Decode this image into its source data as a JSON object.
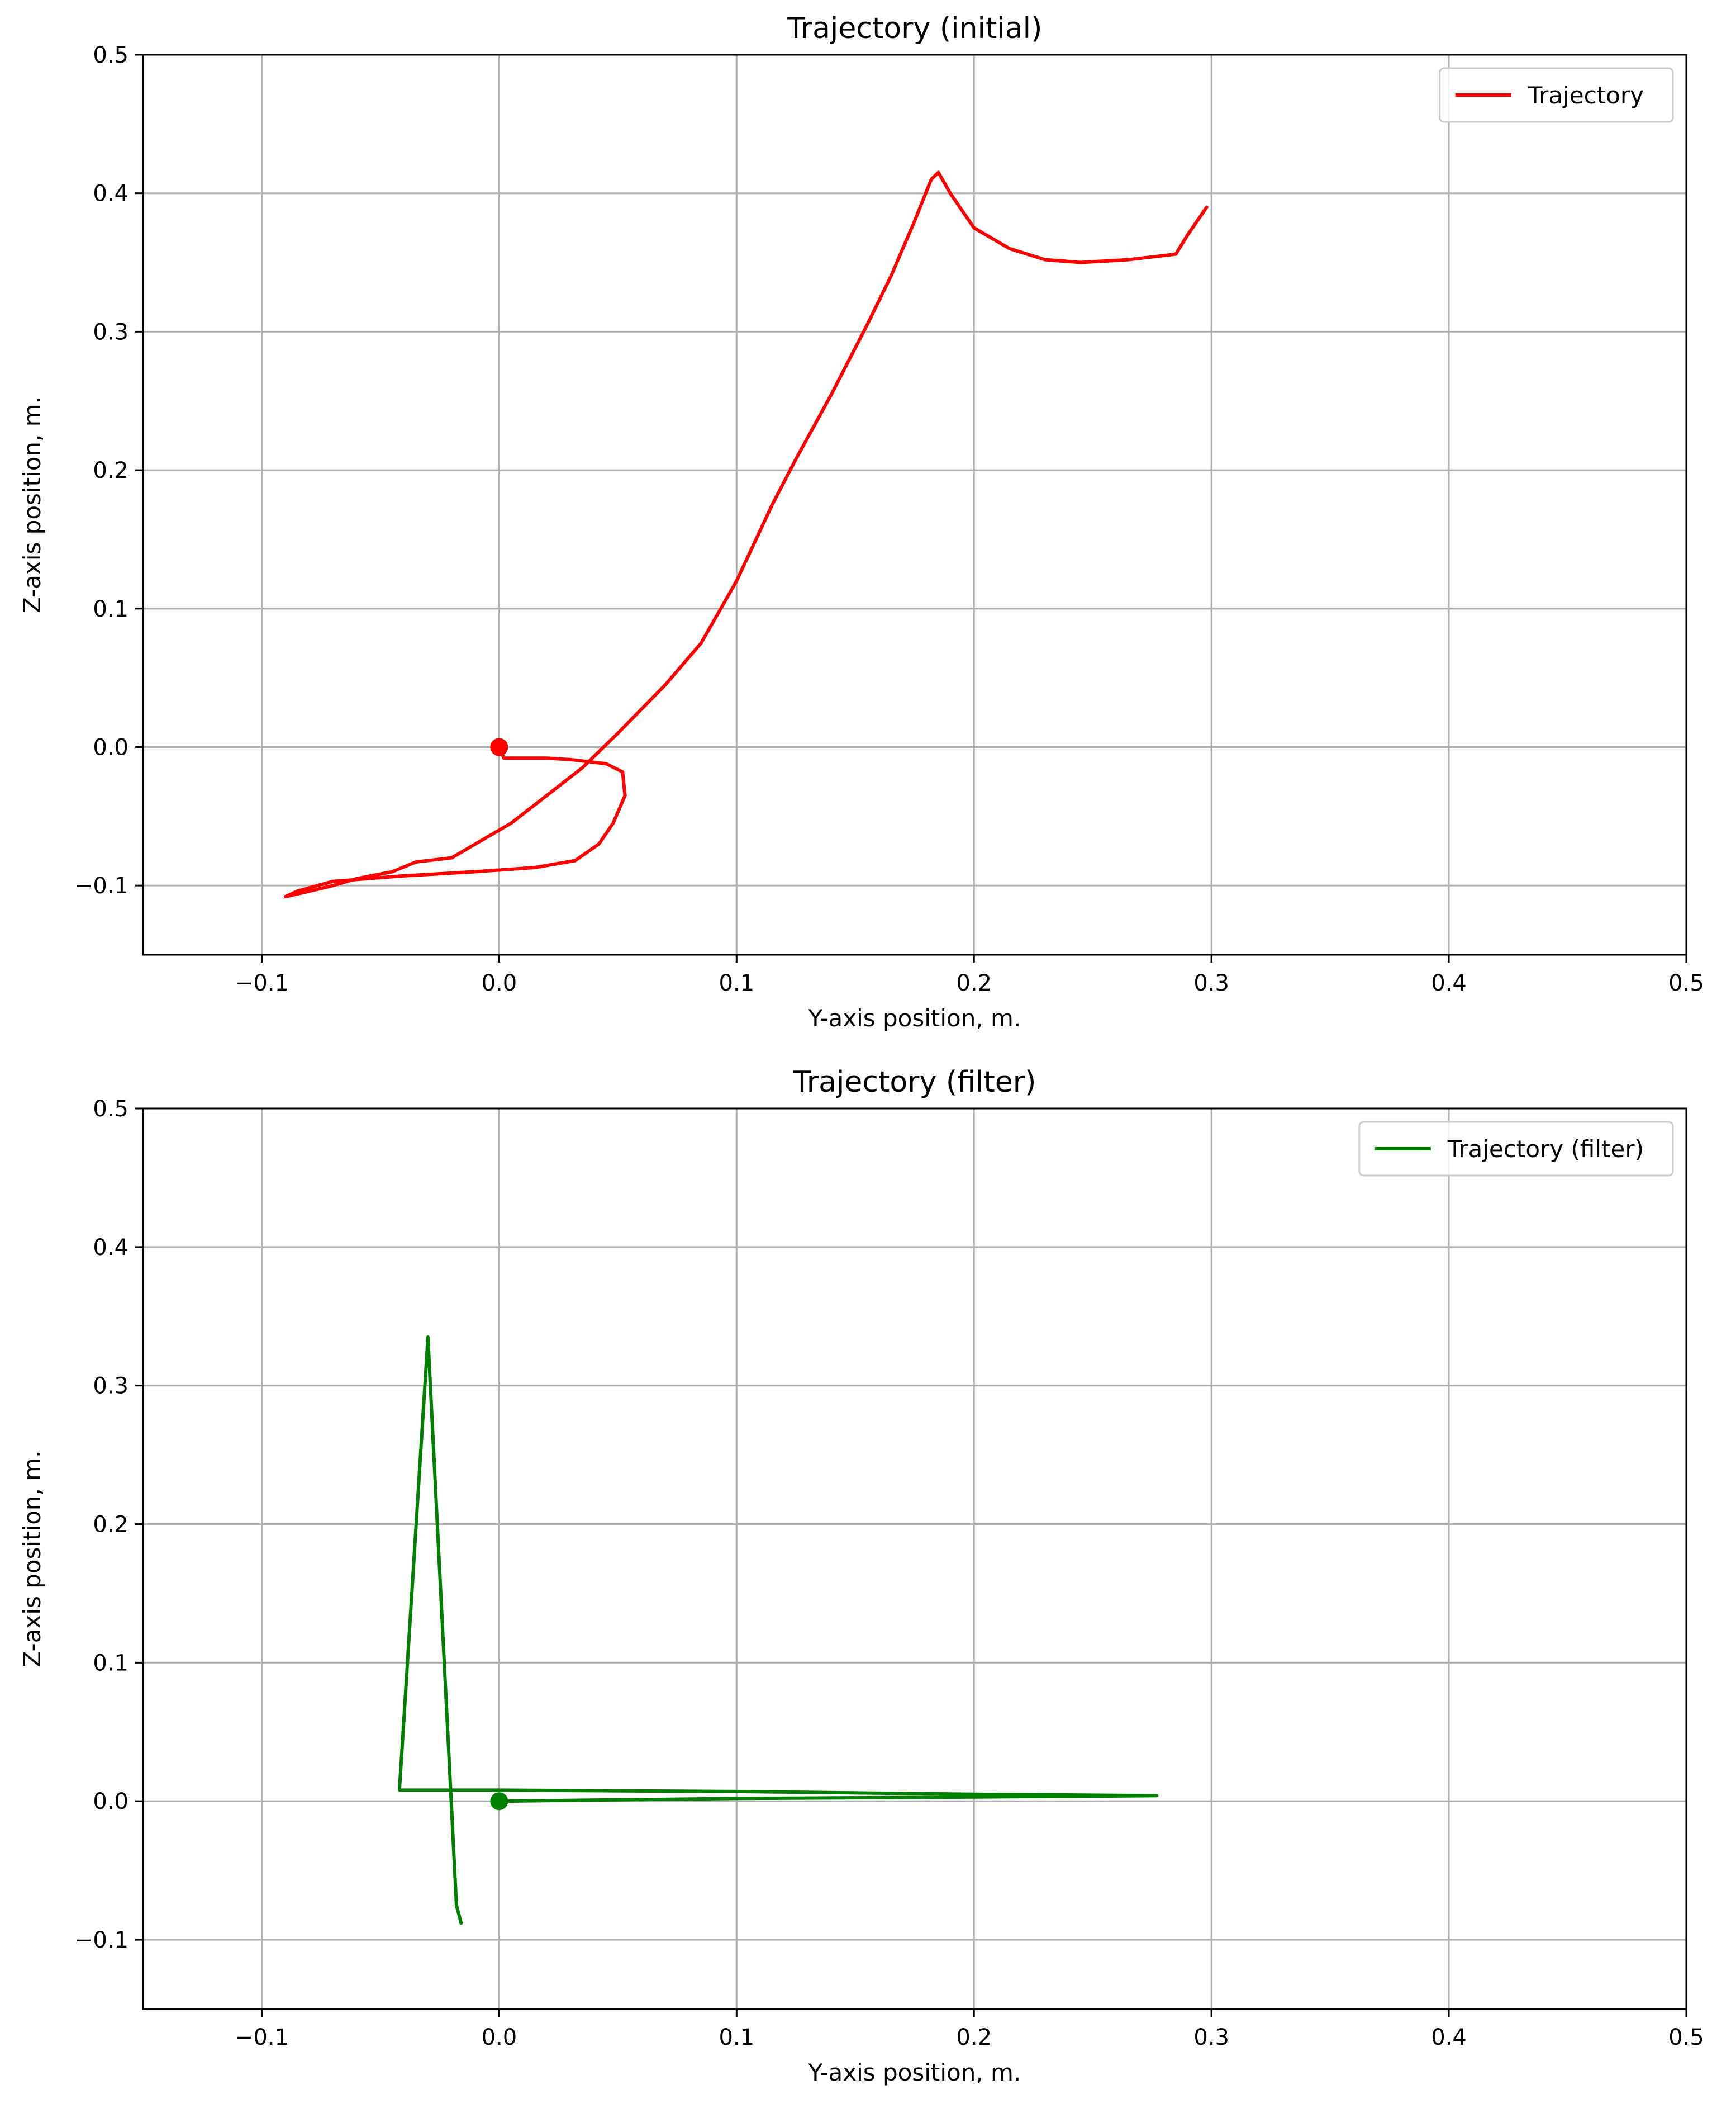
{
  "chart_data": [
    {
      "type": "line",
      "title": "Trajectory (initial)",
      "xlabel": "Y-axis position, m.",
      "ylabel": "Z-axis position, m.",
      "xlim": [
        -0.15,
        0.5
      ],
      "ylim": [
        -0.15,
        0.5
      ],
      "xticks": [
        -0.1,
        0.0,
        0.1,
        0.2,
        0.3,
        0.4,
        0.5
      ],
      "xtick_labels": [
        "−0.1",
        "0.0",
        "0.1",
        "0.2",
        "0.3",
        "0.4",
        "0.5"
      ],
      "yticks": [
        -0.1,
        0.0,
        0.1,
        0.2,
        0.3,
        0.4,
        0.5
      ],
      "ytick_labels": [
        "−0.1",
        "0.0",
        "0.1",
        "0.2",
        "0.3",
        "0.4",
        "0.5"
      ],
      "grid": true,
      "legend_position": "top-right",
      "series": [
        {
          "name": "Trajectory",
          "color": "#ff0000",
          "points": [
            [
              0.0,
              0.0
            ],
            [
              0.002,
              -0.008
            ],
            [
              0.02,
              -0.008
            ],
            [
              0.03,
              -0.009
            ],
            [
              0.045,
              -0.012
            ],
            [
              0.052,
              -0.018
            ],
            [
              0.053,
              -0.035
            ],
            [
              0.048,
              -0.055
            ],
            [
              0.042,
              -0.07
            ],
            [
              0.032,
              -0.082
            ],
            [
              0.015,
              -0.087
            ],
            [
              -0.01,
              -0.09
            ],
            [
              -0.04,
              -0.093
            ],
            [
              -0.07,
              -0.097
            ],
            [
              -0.085,
              -0.104
            ],
            [
              -0.09,
              -0.108
            ],
            [
              -0.082,
              -0.105
            ],
            [
              -0.07,
              -0.1
            ],
            [
              -0.06,
              -0.095
            ],
            [
              -0.045,
              -0.09
            ],
            [
              -0.035,
              -0.083
            ],
            [
              -0.02,
              -0.08
            ],
            [
              -0.01,
              -0.07
            ],
            [
              0.005,
              -0.055
            ],
            [
              0.02,
              -0.035
            ],
            [
              0.035,
              -0.015
            ],
            [
              0.05,
              0.01
            ],
            [
              0.07,
              0.045
            ],
            [
              0.085,
              0.075
            ],
            [
              0.1,
              0.12
            ],
            [
              0.115,
              0.175
            ],
            [
              0.125,
              0.208
            ],
            [
              0.14,
              0.255
            ],
            [
              0.155,
              0.305
            ],
            [
              0.165,
              0.34
            ],
            [
              0.175,
              0.38
            ],
            [
              0.182,
              0.41
            ],
            [
              0.185,
              0.415
            ],
            [
              0.19,
              0.4
            ],
            [
              0.2,
              0.375
            ],
            [
              0.215,
              0.36
            ],
            [
              0.23,
              0.352
            ],
            [
              0.245,
              0.35
            ],
            [
              0.265,
              0.352
            ],
            [
              0.285,
              0.356
            ],
            [
              0.29,
              0.37
            ],
            [
              0.298,
              0.39
            ]
          ]
        }
      ],
      "start_marker": [
        0.0,
        0.0
      ]
    },
    {
      "type": "line",
      "title": "Trajectory (filter)",
      "xlabel": "Y-axis position, m.",
      "ylabel": "Z-axis position, m.",
      "xlim": [
        -0.15,
        0.5
      ],
      "ylim": [
        -0.15,
        0.5
      ],
      "xticks": [
        -0.1,
        0.0,
        0.1,
        0.2,
        0.3,
        0.4,
        0.5
      ],
      "xtick_labels": [
        "−0.1",
        "0.0",
        "0.1",
        "0.2",
        "0.3",
        "0.4",
        "0.5"
      ],
      "yticks": [
        -0.1,
        0.0,
        0.1,
        0.2,
        0.3,
        0.4,
        0.5
      ],
      "ytick_labels": [
        "−0.1",
        "0.0",
        "0.1",
        "0.2",
        "0.3",
        "0.4",
        "0.5"
      ],
      "grid": true,
      "legend_position": "top-right",
      "series": [
        {
          "name": "Trajectory (filter)",
          "color": "#008000",
          "points": [
            [
              0.0,
              0.0
            ],
            [
              0.1,
              0.002
            ],
            [
              0.2,
              0.003
            ],
            [
              0.277,
              0.004
            ],
            [
              0.2,
              0.005
            ],
            [
              0.1,
              0.007
            ],
            [
              0.0,
              0.008
            ],
            [
              -0.042,
              0.008
            ],
            [
              -0.03,
              0.335
            ],
            [
              -0.018,
              -0.075
            ],
            [
              -0.016,
              -0.088
            ]
          ]
        }
      ],
      "start_marker": [
        0.0,
        0.0
      ]
    }
  ]
}
